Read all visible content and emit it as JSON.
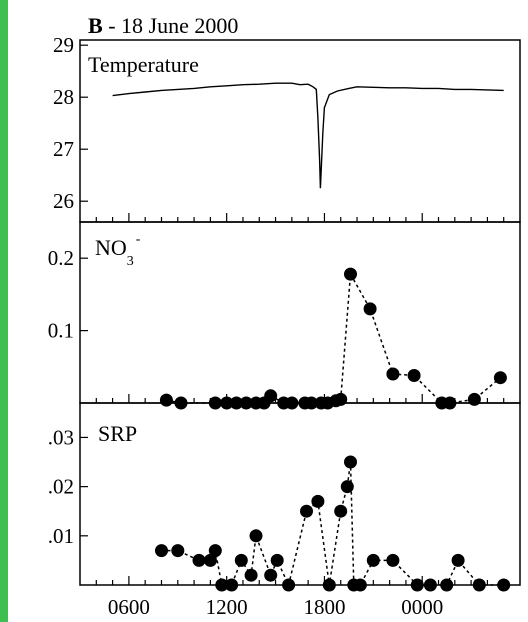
{
  "colors": {
    "frame": "#3fbf4f",
    "background": "#ffffff",
    "ink": "#000000"
  },
  "chart_data": [
    {
      "type": "line",
      "title_bold": "B",
      "title_rest": " - 18 June 2000",
      "label": "Temperature",
      "ylim": [
        25.6,
        29.1
      ],
      "yticks": [
        26,
        27,
        28,
        29
      ],
      "series": [
        {
          "x": [
            5,
            6,
            7,
            8,
            9,
            10,
            11,
            12,
            13,
            14,
            15,
            16,
            16.5,
            17,
            17.3,
            17.5,
            17.6,
            17.7,
            17.75,
            17.8,
            17.9,
            18.0,
            18.3,
            18.8,
            19.5,
            20,
            21,
            22,
            23,
            24,
            25,
            26,
            27,
            28,
            29
          ],
          "y": [
            28.03,
            28.07,
            28.1,
            28.13,
            28.15,
            28.17,
            28.2,
            28.22,
            28.24,
            28.25,
            28.27,
            28.27,
            28.24,
            28.25,
            28.2,
            28.15,
            27.6,
            26.8,
            26.25,
            26.6,
            27.3,
            27.8,
            28.05,
            28.12,
            28.17,
            28.2,
            28.19,
            28.18,
            28.18,
            28.17,
            28.17,
            28.15,
            28.15,
            28.14,
            28.13
          ]
        }
      ]
    },
    {
      "type": "scatter",
      "label_main": "NO",
      "label_sub": "3",
      "label_sup": "-",
      "ylim": [
        0,
        0.25
      ],
      "yticks": [
        0.1,
        0.2
      ],
      "ytick_labels": [
        "0.1",
        "0.2"
      ],
      "series": [
        {
          "x": [
            8.3,
            9.2,
            11.3,
            12.0,
            12.6,
            13.2,
            13.8,
            14.3,
            14.7,
            15.5,
            16.0,
            16.8,
            17.2,
            17.8,
            18.2,
            18.7,
            19.0,
            19.6,
            20.8,
            22.2,
            23.5,
            25.2,
            25.7,
            27.2,
            28.8
          ],
          "y": [
            0.004,
            0,
            0,
            0,
            0,
            0,
            0,
            0,
            0.01,
            0,
            0,
            0,
            0,
            0,
            0,
            0.003,
            0.005,
            0.178,
            0.13,
            0.04,
            0.038,
            0,
            0,
            0.005,
            0.035
          ]
        }
      ]
    },
    {
      "type": "scatter",
      "label": "SRP",
      "ylim": [
        0,
        0.037
      ],
      "yticks": [
        0.01,
        0.02,
        0.03
      ],
      "ytick_labels": [
        ".01",
        ".02",
        ".03"
      ],
      "xticks": [
        6,
        12,
        18,
        24
      ],
      "xtick_labels": [
        "0600",
        "1200",
        "1800",
        "0000"
      ],
      "series": [
        {
          "x": [
            8.0,
            9.0,
            10.3,
            11.0,
            11.3,
            11.7,
            12.3,
            12.9,
            13.5,
            13.8,
            14.7,
            15.1,
            15.8,
            16.9,
            17.6,
            18.3,
            19.0,
            19.4,
            19.6,
            19.8,
            20.2,
            21.0,
            22.2,
            23.7,
            24.5,
            25.5,
            26.2,
            27.5,
            29.0
          ],
          "y": [
            0.007,
            0.007,
            0.005,
            0.005,
            0.007,
            0,
            0,
            0.005,
            0.002,
            0.01,
            0.002,
            0.005,
            0,
            0.015,
            0.017,
            0,
            0.015,
            0.02,
            0.025,
            0,
            0,
            0.005,
            0.005,
            0,
            0,
            0,
            0.005,
            0,
            0
          ]
        }
      ]
    }
  ]
}
